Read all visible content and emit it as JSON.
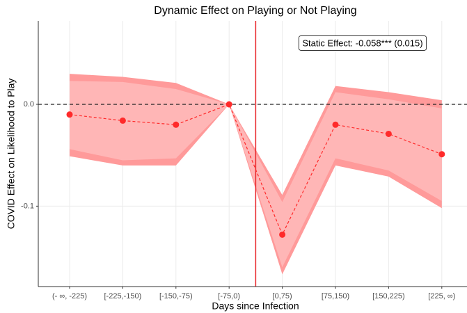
{
  "chart_data": {
    "type": "band-line",
    "title": "Dynamic Effect on Playing or Not Playing",
    "xlabel": "Days since Infection",
    "ylabel": "COVID Effect on Likelihood to Play",
    "annotation": "Static Effect: -0.058*** (0.015)",
    "categories": [
      "(- ∞, -225)",
      "[-225,-150)",
      "[-150,-75)",
      "[-75,0)",
      "[0,75)",
      "[75,150)",
      "[150,225)",
      "[225, ∞)"
    ],
    "series": [
      {
        "color": "#ff2a2a",
        "values": [
          -0.01,
          -0.016,
          -0.02,
          0,
          -0.128,
          -0.02,
          -0.029,
          -0.049
        ]
      }
    ],
    "bands": [
      {
        "color": "#ff9a9a",
        "lower": [
          -0.051,
          -0.06,
          -0.06,
          0,
          -0.167,
          -0.06,
          -0.071,
          -0.102
        ],
        "upper": [
          0.03,
          0.027,
          0.021,
          0,
          -0.089,
          0.018,
          0.012,
          0.004
        ]
      },
      {
        "color": "#ffb6b6",
        "lower": [
          -0.044,
          -0.055,
          -0.053,
          0,
          -0.16,
          -0.053,
          -0.065,
          -0.095
        ],
        "upper": [
          0.023,
          0.022,
          0.015,
          0,
          -0.096,
          0.012,
          0.005,
          -0.004
        ]
      }
    ],
    "vline": 3.5,
    "vline_color": "#e8262a",
    "hline": 0,
    "ylim": [
      -0.179,
      0.082
    ],
    "yticks": [
      {
        "value": 0,
        "label": "0.0"
      },
      -0.1
    ],
    "grid": true
  }
}
